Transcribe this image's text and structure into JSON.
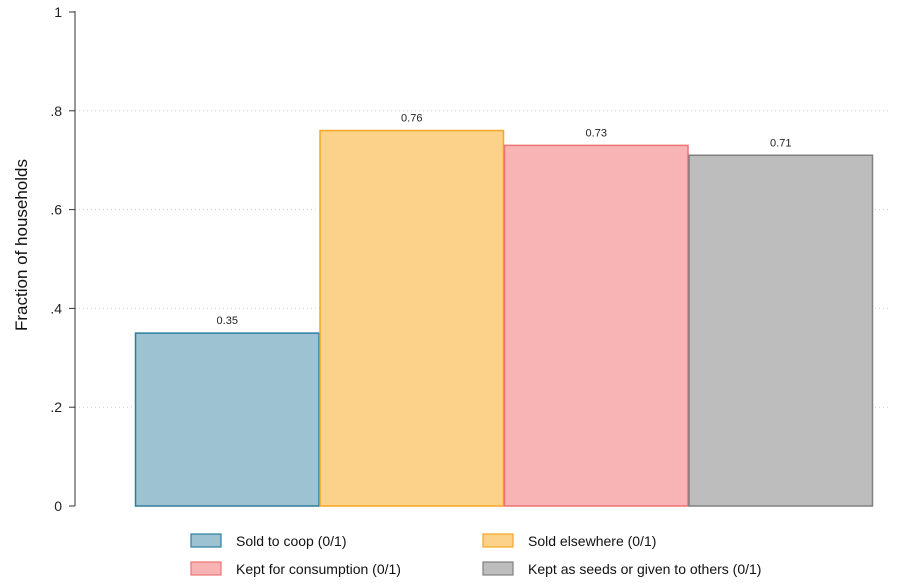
{
  "chart_data": {
    "type": "bar",
    "title": "",
    "xlabel": "",
    "ylabel": "Fraction of households",
    "ylim": [
      0,
      1
    ],
    "yticks": [
      {
        "value": 0,
        "label": "0"
      },
      {
        "value": 0.2,
        "label": ".2"
      },
      {
        "value": 0.4,
        "label": ".4"
      },
      {
        "value": 0.6,
        "label": ".6"
      },
      {
        "value": 0.8,
        "label": ".8"
      },
      {
        "value": 1,
        "label": "1"
      }
    ],
    "grid": true,
    "legend_position": "bottom",
    "series": [
      {
        "name": "Sold to coop (0/1)",
        "value": 0.35,
        "label": "0.35",
        "fill": "#9DC3D3",
        "stroke": "#2C7E9E"
      },
      {
        "name": "Sold elsewhere (0/1)",
        "value": 0.76,
        "label": "0.76",
        "fill": "#FCD18A",
        "stroke": "#F5A623"
      },
      {
        "name": "Kept for consumption (0/1)",
        "value": 0.73,
        "label": "0.73",
        "fill": "#F8B4B4",
        "stroke": "#EC7373"
      },
      {
        "name": "Kept as seeds or given to others (0/1)",
        "value": 0.71,
        "label": "0.71",
        "fill": "#BDBDBD",
        "stroke": "#808080"
      }
    ]
  }
}
